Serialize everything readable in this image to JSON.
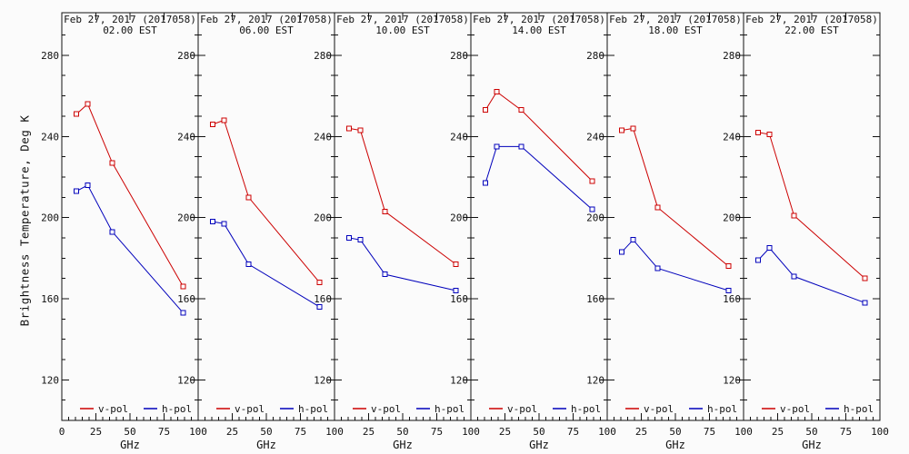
{
  "figure": {
    "ylabel": "Brightness Temperature, Deg K",
    "xlabel": "GHz",
    "background": "#fbfbfb",
    "axis_color": "#111111",
    "vpol_color": "#cc0000",
    "hpol_color": "#0000bb"
  },
  "chart_data": [
    {
      "type": "line",
      "title": "Feb 27, 2017 (2017058)",
      "subtitle": "02.00 EST",
      "x": [
        10.7,
        19,
        37,
        89
      ],
      "series": [
        {
          "name": "v-pol",
          "color": "#cc0000",
          "values": [
            251,
            256,
            227,
            166
          ]
        },
        {
          "name": "h-pol",
          "color": "#0000bb",
          "values": [
            213,
            216,
            193,
            153
          ]
        }
      ],
      "xlabel": "GHz",
      "xlim": [
        0,
        100
      ],
      "ylim": [
        100,
        300
      ],
      "xticks": [
        0,
        25,
        50,
        75,
        100
      ],
      "yticks": [
        120,
        160,
        200,
        240,
        280
      ],
      "legend_position": "bottom"
    },
    {
      "type": "line",
      "title": "Feb 27, 2017 (2017058)",
      "subtitle": "06.00 EST",
      "x": [
        10.7,
        19,
        37,
        89
      ],
      "series": [
        {
          "name": "v-pol",
          "color": "#cc0000",
          "values": [
            246,
            248,
            210,
            168
          ]
        },
        {
          "name": "h-pol",
          "color": "#0000bb",
          "values": [
            198,
            197,
            177,
            156
          ]
        }
      ],
      "xlabel": "GHz",
      "xlim": [
        0,
        100
      ],
      "ylim": [
        100,
        300
      ],
      "xticks": [
        0,
        25,
        50,
        75,
        100
      ],
      "yticks": [
        120,
        160,
        200,
        240,
        280
      ],
      "legend_position": "bottom"
    },
    {
      "type": "line",
      "title": "Feb 27, 2017 (2017058)",
      "subtitle": "10.00 EST",
      "x": [
        10.7,
        19,
        37,
        89
      ],
      "series": [
        {
          "name": "v-pol",
          "color": "#cc0000",
          "values": [
            244,
            243,
            203,
            177
          ]
        },
        {
          "name": "h-pol",
          "color": "#0000bb",
          "values": [
            190,
            189,
            172,
            164
          ]
        }
      ],
      "xlabel": "GHz",
      "xlim": [
        0,
        100
      ],
      "ylim": [
        100,
        300
      ],
      "xticks": [
        0,
        25,
        50,
        75,
        100
      ],
      "yticks": [
        120,
        160,
        200,
        240,
        280
      ],
      "legend_position": "bottom"
    },
    {
      "type": "line",
      "title": "Feb 27, 2017 (2017058)",
      "subtitle": "14.00 EST",
      "x": [
        10.7,
        19,
        37,
        89
      ],
      "series": [
        {
          "name": "v-pol",
          "color": "#cc0000",
          "values": [
            253,
            262,
            253,
            218
          ]
        },
        {
          "name": "h-pol",
          "color": "#0000bb",
          "values": [
            217,
            235,
            235,
            204
          ]
        }
      ],
      "xlabel": "GHz",
      "xlim": [
        0,
        100
      ],
      "ylim": [
        100,
        300
      ],
      "xticks": [
        0,
        25,
        50,
        75,
        100
      ],
      "yticks": [
        120,
        160,
        200,
        240,
        280
      ],
      "legend_position": "bottom"
    },
    {
      "type": "line",
      "title": "Feb 27, 2017 (2017058)",
      "subtitle": "18.00 EST",
      "x": [
        10.7,
        19,
        37,
        89
      ],
      "series": [
        {
          "name": "v-pol",
          "color": "#cc0000",
          "values": [
            243,
            244,
            205,
            176
          ]
        },
        {
          "name": "h-pol",
          "color": "#0000bb",
          "values": [
            183,
            189,
            175,
            164
          ]
        }
      ],
      "xlabel": "GHz",
      "xlim": [
        0,
        100
      ],
      "ylim": [
        100,
        300
      ],
      "xticks": [
        0,
        25,
        50,
        75,
        100
      ],
      "yticks": [
        120,
        160,
        200,
        240,
        280
      ],
      "legend_position": "bottom"
    },
    {
      "type": "line",
      "title": "Feb 27, 2017 (2017058)",
      "subtitle": "22.00 EST",
      "x": [
        10.7,
        19,
        37,
        89
      ],
      "series": [
        {
          "name": "v-pol",
          "color": "#cc0000",
          "values": [
            242,
            241,
            201,
            170
          ]
        },
        {
          "name": "h-pol",
          "color": "#0000bb",
          "values": [
            179,
            185,
            171,
            158
          ]
        }
      ],
      "xlabel": "GHz",
      "xlim": [
        0,
        100
      ],
      "ylim": [
        100,
        300
      ],
      "xticks": [
        0,
        25,
        50,
        75,
        100
      ],
      "yticks": [
        120,
        160,
        200,
        240,
        280
      ],
      "legend_position": "bottom"
    }
  ]
}
